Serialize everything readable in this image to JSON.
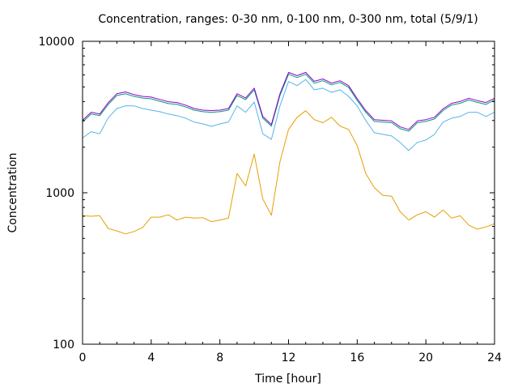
{
  "chart_data": {
    "type": "line",
    "title": "Concentration, ranges: 0-30 nm, 0-100 nm, 0-300 nm, total (5/9/1)",
    "xlabel": "Time [hour]",
    "ylabel": "Concentration",
    "xlim": [
      0,
      24
    ],
    "ylim": [
      100,
      10000
    ],
    "yscale": "log",
    "grid": false,
    "legend": "none",
    "xticks": [
      0,
      4,
      8,
      12,
      16,
      20,
      24
    ],
    "xtick_labels": [
      "0",
      "4",
      "8",
      "12",
      "16",
      "20",
      "24"
    ],
    "yticks": [
      100,
      1000,
      10000
    ],
    "ytick_labels": [
      "100",
      "1000",
      "10000"
    ],
    "x": [
      0,
      0.5,
      1,
      1.5,
      2,
      2.5,
      3,
      3.5,
      4,
      4.5,
      5,
      5.5,
      6,
      6.5,
      7,
      7.5,
      8,
      8.5,
      9,
      9.5,
      10,
      10.5,
      11,
      11.5,
      12,
      12.5,
      13,
      13.5,
      14,
      14.5,
      15,
      15.5,
      16,
      16.5,
      17,
      17.5,
      18,
      18.5,
      19,
      19.5,
      20,
      20.5,
      21,
      21.5,
      22,
      22.5,
      23,
      23.5,
      24
    ],
    "series": [
      {
        "name": "0-30 nm",
        "color": "#e69f00",
        "values": [
          705,
          700,
          705,
          580,
          560,
          535,
          555,
          590,
          690,
          690,
          715,
          660,
          690,
          680,
          685,
          645,
          660,
          680,
          1340,
          1110,
          1800,
          910,
          710,
          1600,
          2620,
          3150,
          3480,
          3040,
          2900,
          3150,
          2760,
          2620,
          2050,
          1340,
          1080,
          960,
          950,
          750,
          660,
          715,
          750,
          690,
          770,
          680,
          705,
          610,
          575,
          595,
          625
        ]
      },
      {
        "name": "0-100 nm",
        "color": "#56b4e9",
        "values": [
          2300,
          2530,
          2450,
          3130,
          3600,
          3750,
          3750,
          3600,
          3510,
          3430,
          3310,
          3230,
          3110,
          2930,
          2850,
          2740,
          2850,
          2930,
          3750,
          3400,
          3970,
          2450,
          2250,
          3750,
          5420,
          5100,
          5600,
          4780,
          4900,
          4600,
          4780,
          4330,
          3750,
          3000,
          2490,
          2430,
          2370,
          2150,
          1900,
          2150,
          2230,
          2430,
          2930,
          3110,
          3190,
          3400,
          3400,
          3190,
          3400
        ]
      },
      {
        "name": "0-300 nm",
        "color": "#009e73",
        "values": [
          2930,
          3310,
          3230,
          3830,
          4390,
          4500,
          4330,
          4220,
          4170,
          4020,
          3880,
          3830,
          3690,
          3510,
          3430,
          3400,
          3430,
          3510,
          4390,
          4120,
          4780,
          3110,
          2750,
          4390,
          6060,
          5770,
          6060,
          5290,
          5490,
          5160,
          5350,
          4970,
          4070,
          3400,
          2960,
          2930,
          2900,
          2650,
          2550,
          2900,
          2960,
          3070,
          3490,
          3800,
          3900,
          4100,
          3950,
          3830,
          4100
        ]
      },
      {
        "name": "total",
        "color": "#9400d3",
        "values": [
          3010,
          3400,
          3310,
          3940,
          4510,
          4630,
          4450,
          4330,
          4280,
          4130,
          3990,
          3940,
          3790,
          3600,
          3510,
          3490,
          3510,
          3600,
          4510,
          4230,
          4910,
          3190,
          2820,
          4510,
          6230,
          5930,
          6230,
          5440,
          5640,
          5300,
          5490,
          5100,
          4180,
          3490,
          3040,
          3010,
          2980,
          2720,
          2620,
          2980,
          3040,
          3150,
          3580,
          3900,
          4010,
          4210,
          4060,
          3940,
          4210
        ]
      }
    ]
  }
}
